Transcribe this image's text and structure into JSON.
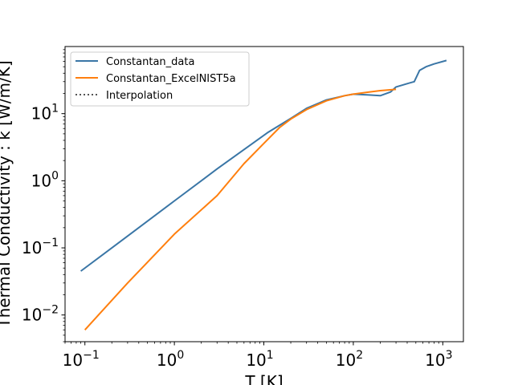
{
  "chart_data": {
    "type": "line",
    "xlabel": "T [K]",
    "ylabel": "Thermal Conductivity : k [W/m/K]",
    "xscale": "log",
    "yscale": "log",
    "xlim": [
      0.06,
      1700
    ],
    "ylim": [
      0.004,
      100
    ],
    "grid": false,
    "legend_position": "top-left",
    "x_ticks": [
      {
        "value": 0.1,
        "base": "10",
        "exp": "−1"
      },
      {
        "value": 1,
        "base": "10",
        "exp": "0"
      },
      {
        "value": 10,
        "base": "10",
        "exp": "1"
      },
      {
        "value": 100,
        "base": "10",
        "exp": "2"
      },
      {
        "value": 1000,
        "base": "10",
        "exp": "3"
      }
    ],
    "y_ticks": [
      {
        "value": 0.01,
        "base": "10",
        "exp": "−2"
      },
      {
        "value": 0.1,
        "base": "10",
        "exp": "−1"
      },
      {
        "value": 1,
        "base": "10",
        "exp": "0"
      },
      {
        "value": 10,
        "base": "10",
        "exp": "1"
      }
    ],
    "series": [
      {
        "name": "Constantan_data",
        "color": "#3a76a6",
        "style": "solid",
        "x": [
          0.09,
          0.3,
          1,
          3,
          11,
          20,
          30,
          50,
          80,
          100,
          150,
          200,
          260,
          300,
          400,
          480,
          550,
          650,
          800,
          1100
        ],
        "y": [
          0.045,
          0.15,
          0.5,
          1.5,
          5.2,
          8.5,
          12,
          16,
          18.5,
          19.5,
          19,
          18.5,
          21,
          25,
          28,
          30,
          44,
          50,
          55,
          62
        ]
      },
      {
        "name": "Constantan_ExcelNIST5a",
        "color": "#ff7f0e",
        "style": "solid",
        "x": [
          0.1,
          0.3,
          1,
          3,
          6,
          10,
          15,
          20,
          30,
          50,
          80,
          100,
          150,
          200,
          300
        ],
        "y": [
          0.006,
          0.03,
          0.16,
          0.6,
          1.8,
          3.6,
          6.2,
          8.3,
          11.5,
          15.5,
          18.5,
          19.5,
          21,
          22,
          23
        ]
      },
      {
        "name": "Interpolation",
        "color": "#555555",
        "style": "dotted",
        "x": [],
        "y": []
      }
    ]
  }
}
